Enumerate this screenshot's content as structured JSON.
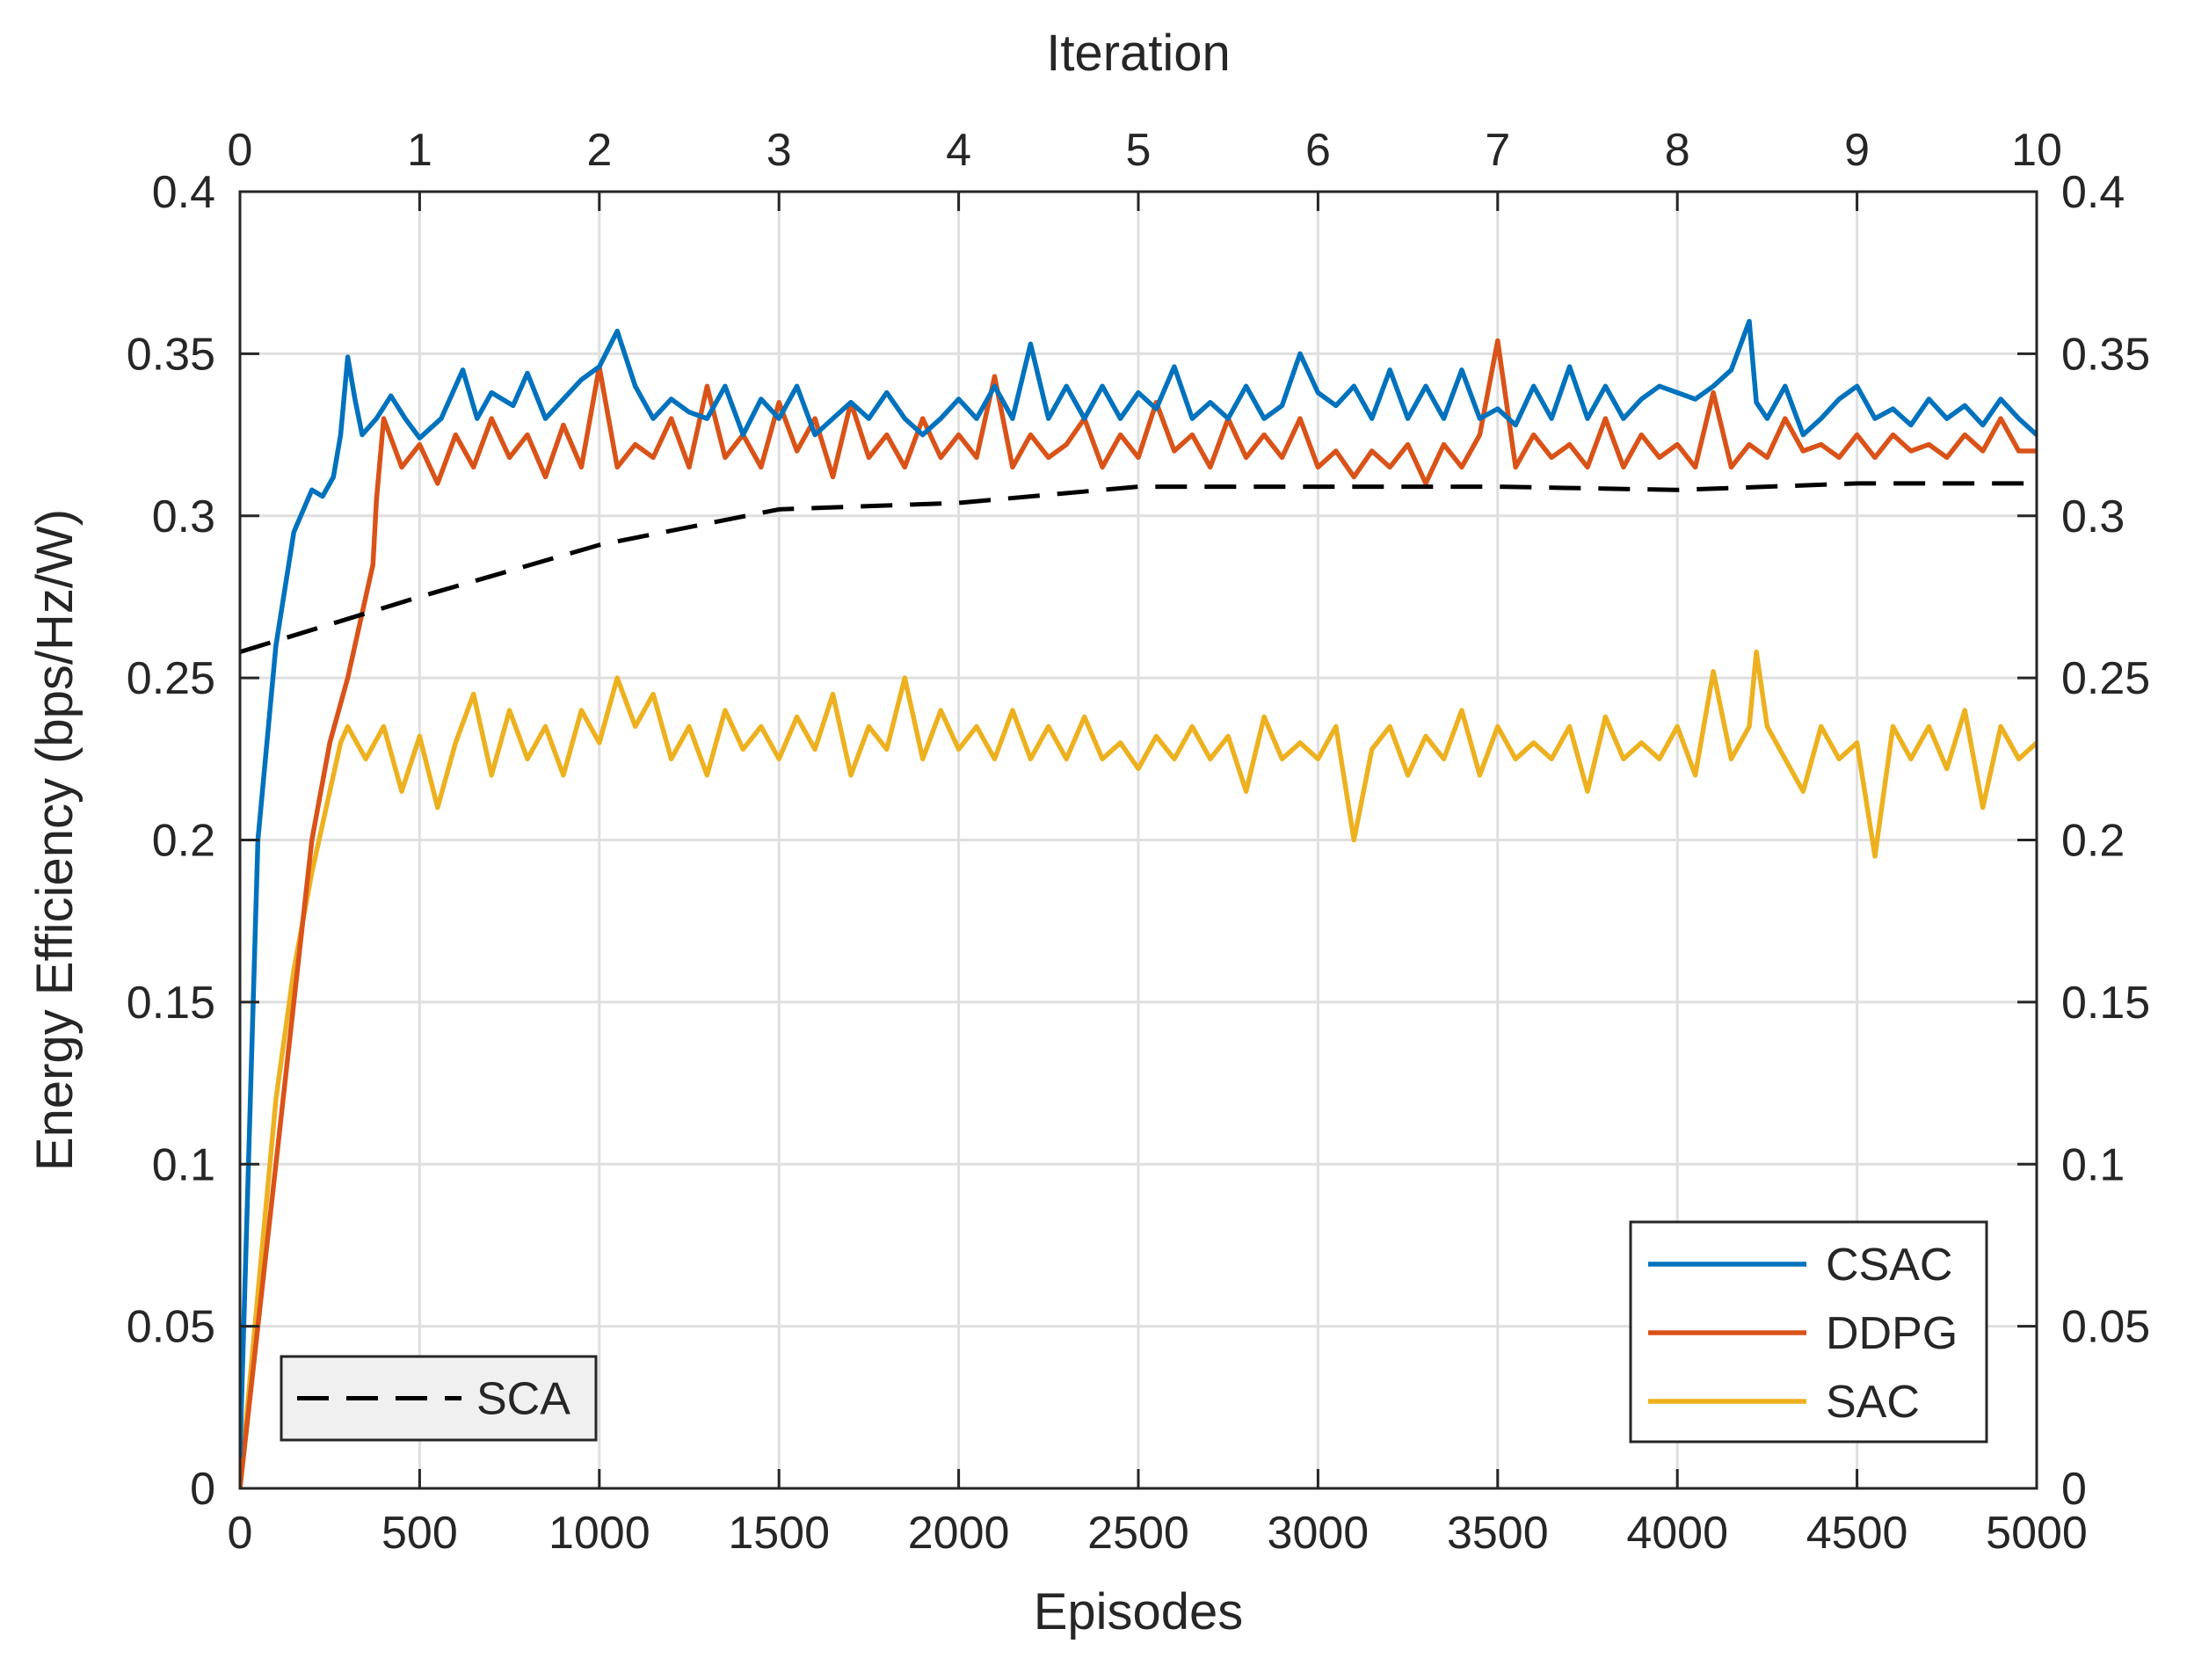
{
  "chart_data": {
    "type": "line",
    "title": "",
    "xlabel": "Episodes",
    "ylabel": "Energy Efficiency (bps/Hz/W)",
    "x2label": "Iteration",
    "xlim": [
      0,
      5000
    ],
    "ylim": [
      0,
      0.4
    ],
    "x2lim": [
      0,
      10
    ],
    "grid": true,
    "xticks": [
      0,
      500,
      1000,
      1500,
      2000,
      2500,
      3000,
      3500,
      4000,
      4500,
      5000
    ],
    "xtick_labels": [
      "0",
      "500",
      "1000",
      "1500",
      "2000",
      "2500",
      "3000",
      "3500",
      "4000",
      "4500",
      "5000"
    ],
    "x2ticks": [
      0,
      1,
      2,
      3,
      4,
      5,
      6,
      7,
      8,
      9,
      10
    ],
    "x2tick_labels": [
      "0",
      "1",
      "2",
      "3",
      "4",
      "5",
      "6",
      "7",
      "8",
      "9",
      "10"
    ],
    "yticks": [
      0,
      0.05,
      0.1,
      0.15,
      0.2,
      0.25,
      0.3,
      0.35,
      0.4
    ],
    "ytick_labels": [
      "0",
      "0.05",
      "0.1",
      "0.15",
      "0.2",
      "0.25",
      "0.3",
      "0.35",
      "0.4"
    ],
    "legends": [
      {
        "placement": "bottom-right",
        "entries": [
          "CSAC",
          "DDPG",
          "SAC"
        ]
      },
      {
        "placement": "bottom-left",
        "entries": [
          "SCA"
        ]
      }
    ],
    "series": [
      {
        "name": "CSAC",
        "color": "#0072BD",
        "axis": "episodes",
        "style": "solid",
        "x": [
          0,
          50,
          100,
          150,
          200,
          230,
          260,
          280,
          300,
          320,
          340,
          380,
          420,
          460,
          500,
          560,
          620,
          660,
          700,
          760,
          800,
          850,
          900,
          950,
          1000,
          1050,
          1100,
          1150,
          1200,
          1250,
          1300,
          1350,
          1400,
          1450,
          1500,
          1550,
          1600,
          1650,
          1700,
          1750,
          1800,
          1850,
          1900,
          1950,
          2000,
          2050,
          2100,
          2150,
          2200,
          2250,
          2300,
          2350,
          2400,
          2450,
          2500,
          2550,
          2600,
          2650,
          2700,
          2750,
          2800,
          2850,
          2900,
          2950,
          3000,
          3050,
          3100,
          3150,
          3200,
          3250,
          3300,
          3350,
          3400,
          3450,
          3500,
          3550,
          3600,
          3650,
          3700,
          3750,
          3800,
          3850,
          3900,
          3950,
          4000,
          4050,
          4100,
          4150,
          4200,
          4220,
          4250,
          4300,
          4350,
          4400,
          4450,
          4500,
          4550,
          4600,
          4650,
          4700,
          4750,
          4800,
          4850,
          4900,
          4950,
          5000
        ],
        "y": [
          0.01,
          0.2,
          0.26,
          0.295,
          0.308,
          0.306,
          0.312,
          0.325,
          0.349,
          0.336,
          0.325,
          0.33,
          0.337,
          0.33,
          0.324,
          0.33,
          0.345,
          0.33,
          0.338,
          0.334,
          0.344,
          0.33,
          0.336,
          0.342,
          0.346,
          0.357,
          0.34,
          0.33,
          0.336,
          0.332,
          0.33,
          0.34,
          0.325,
          0.336,
          0.33,
          0.34,
          0.325,
          0.33,
          0.335,
          0.33,
          0.338,
          0.33,
          0.325,
          0.33,
          0.336,
          0.33,
          0.34,
          0.33,
          0.353,
          0.33,
          0.34,
          0.33,
          0.34,
          0.33,
          0.338,
          0.333,
          0.346,
          0.33,
          0.335,
          0.33,
          0.34,
          0.33,
          0.334,
          0.35,
          0.338,
          0.334,
          0.34,
          0.33,
          0.345,
          0.33,
          0.34,
          0.33,
          0.345,
          0.33,
          0.333,
          0.328,
          0.34,
          0.33,
          0.346,
          0.33,
          0.34,
          0.33,
          0.336,
          0.34,
          0.338,
          0.336,
          0.34,
          0.345,
          0.36,
          0.335,
          0.33,
          0.34,
          0.325,
          0.33,
          0.336,
          0.34,
          0.33,
          0.333,
          0.328,
          0.336,
          0.33,
          0.334,
          0.328,
          0.336,
          0.33,
          0.325
        ]
      },
      {
        "name": "DDPG",
        "color": "#D95319",
        "axis": "episodes",
        "style": "solid",
        "x": [
          0,
          50,
          100,
          150,
          200,
          250,
          300,
          340,
          370,
          380,
          400,
          450,
          500,
          550,
          600,
          650,
          700,
          750,
          800,
          850,
          900,
          950,
          1000,
          1050,
          1100,
          1150,
          1200,
          1250,
          1300,
          1350,
          1400,
          1450,
          1500,
          1550,
          1600,
          1650,
          1700,
          1750,
          1800,
          1850,
          1900,
          1950,
          2000,
          2050,
          2100,
          2150,
          2200,
          2250,
          2300,
          2350,
          2400,
          2450,
          2500,
          2550,
          2600,
          2650,
          2700,
          2750,
          2800,
          2850,
          2900,
          2950,
          3000,
          3050,
          3100,
          3150,
          3200,
          3250,
          3300,
          3350,
          3400,
          3450,
          3500,
          3550,
          3600,
          3650,
          3700,
          3750,
          3800,
          3850,
          3900,
          3950,
          4000,
          4050,
          4100,
          4150,
          4200,
          4250,
          4300,
          4350,
          4400,
          4450,
          4500,
          4550,
          4600,
          4650,
          4700,
          4750,
          4800,
          4850,
          4900,
          4950,
          5000
        ],
        "y": [
          0,
          0.05,
          0.1,
          0.15,
          0.2,
          0.23,
          0.25,
          0.27,
          0.285,
          0.305,
          0.33,
          0.315,
          0.322,
          0.31,
          0.325,
          0.315,
          0.33,
          0.318,
          0.325,
          0.312,
          0.328,
          0.315,
          0.346,
          0.315,
          0.322,
          0.318,
          0.33,
          0.315,
          0.34,
          0.318,
          0.325,
          0.315,
          0.335,
          0.32,
          0.33,
          0.312,
          0.335,
          0.318,
          0.325,
          0.315,
          0.33,
          0.318,
          0.325,
          0.318,
          0.343,
          0.315,
          0.325,
          0.318,
          0.322,
          0.33,
          0.315,
          0.325,
          0.318,
          0.335,
          0.32,
          0.325,
          0.315,
          0.33,
          0.318,
          0.325,
          0.318,
          0.33,
          0.315,
          0.32,
          0.312,
          0.32,
          0.315,
          0.322,
          0.31,
          0.322,
          0.315,
          0.325,
          0.354,
          0.315,
          0.325,
          0.318,
          0.322,
          0.315,
          0.33,
          0.315,
          0.325,
          0.318,
          0.322,
          0.315,
          0.338,
          0.315,
          0.322,
          0.318,
          0.33,
          0.32,
          0.322,
          0.318,
          0.325,
          0.318,
          0.325,
          0.32,
          0.322,
          0.318,
          0.325,
          0.32,
          0.33,
          0.32,
          0.32
        ]
      },
      {
        "name": "SAC",
        "color": "#EDB120",
        "axis": "episodes",
        "style": "solid",
        "x": [
          0,
          50,
          100,
          150,
          200,
          250,
          280,
          300,
          350,
          400,
          450,
          500,
          550,
          600,
          650,
          700,
          750,
          800,
          850,
          900,
          950,
          1000,
          1050,
          1100,
          1150,
          1200,
          1250,
          1300,
          1350,
          1400,
          1450,
          1500,
          1550,
          1600,
          1650,
          1700,
          1750,
          1800,
          1850,
          1900,
          1950,
          2000,
          2050,
          2100,
          2150,
          2200,
          2250,
          2300,
          2350,
          2400,
          2450,
          2500,
          2550,
          2600,
          2650,
          2700,
          2750,
          2800,
          2850,
          2900,
          2950,
          3000,
          3050,
          3100,
          3150,
          3200,
          3250,
          3300,
          3350,
          3400,
          3450,
          3500,
          3550,
          3600,
          3650,
          3700,
          3750,
          3800,
          3850,
          3900,
          3950,
          4000,
          4050,
          4100,
          4150,
          4200,
          4220,
          4250,
          4300,
          4350,
          4400,
          4450,
          4500,
          4550,
          4600,
          4650,
          4700,
          4750,
          4800,
          4850,
          4900,
          4950,
          5000
        ],
        "y": [
          0,
          0.06,
          0.12,
          0.16,
          0.19,
          0.215,
          0.23,
          0.235,
          0.225,
          0.235,
          0.215,
          0.232,
          0.21,
          0.23,
          0.245,
          0.22,
          0.24,
          0.225,
          0.235,
          0.22,
          0.24,
          0.23,
          0.25,
          0.235,
          0.245,
          0.225,
          0.235,
          0.22,
          0.24,
          0.228,
          0.235,
          0.225,
          0.238,
          0.228,
          0.245,
          0.22,
          0.235,
          0.228,
          0.25,
          0.225,
          0.24,
          0.228,
          0.235,
          0.225,
          0.24,
          0.225,
          0.235,
          0.225,
          0.238,
          0.225,
          0.23,
          0.222,
          0.232,
          0.225,
          0.235,
          0.225,
          0.232,
          0.215,
          0.238,
          0.225,
          0.23,
          0.225,
          0.235,
          0.2,
          0.228,
          0.235,
          0.22,
          0.232,
          0.225,
          0.24,
          0.22,
          0.235,
          0.225,
          0.23,
          0.225,
          0.235,
          0.215,
          0.238,
          0.225,
          0.23,
          0.225,
          0.235,
          0.22,
          0.252,
          0.225,
          0.235,
          0.258,
          0.235,
          0.225,
          0.215,
          0.235,
          0.225,
          0.23,
          0.195,
          0.235,
          0.225,
          0.235,
          0.222,
          0.24,
          0.21,
          0.235,
          0.225,
          0.23
        ]
      },
      {
        "name": "SCA",
        "color": "#000000",
        "axis": "iteration",
        "style": "dashed",
        "x": [
          0,
          1,
          2,
          3,
          4,
          5,
          6,
          7,
          8,
          9,
          10
        ],
        "y": [
          0.258,
          0.275,
          0.291,
          0.302,
          0.304,
          0.309,
          0.309,
          0.309,
          0.308,
          0.31,
          0.31
        ]
      }
    ]
  }
}
